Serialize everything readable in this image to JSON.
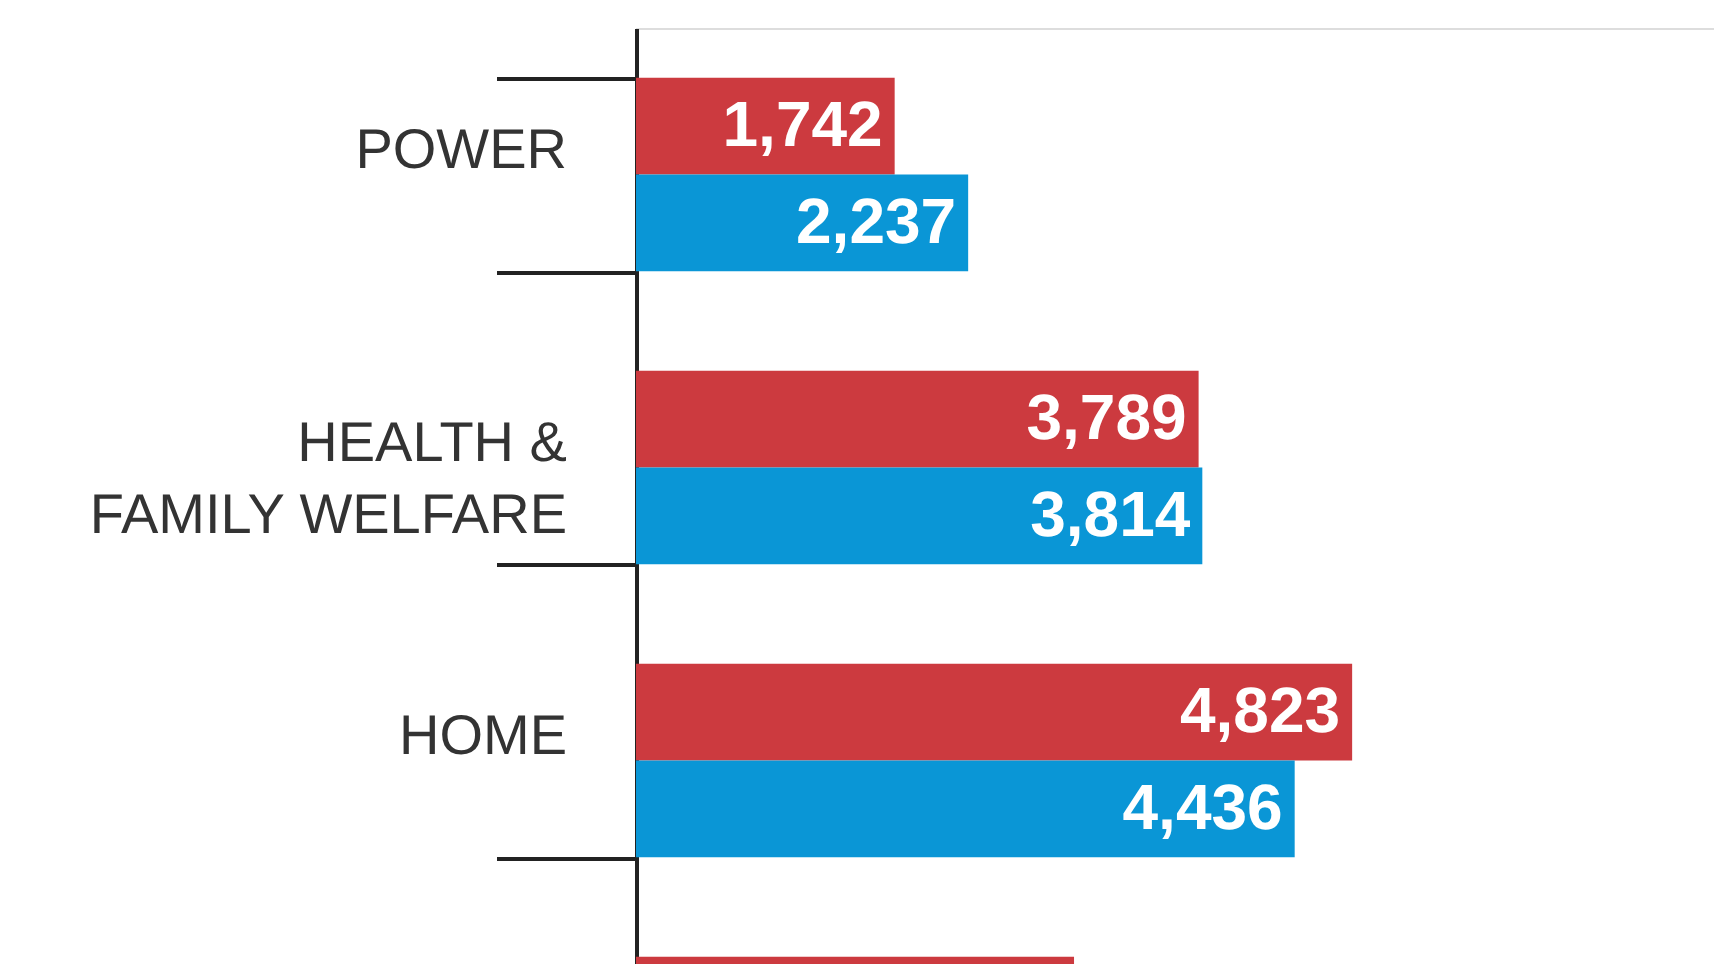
{
  "chart_data": {
    "type": "bar",
    "orientation": "horizontal",
    "categories": [
      "POWER",
      "HEALTH & FAMILY WELFARE",
      "HOME",
      null
    ],
    "series": [
      {
        "color": "#cc3a3f",
        "values": [
          1742,
          3789,
          4823,
          2950
        ],
        "value_labels": [
          "1,742",
          "3,789",
          "4,823",
          null
        ]
      },
      {
        "color": "#0a96d6",
        "values": [
          2237,
          3814,
          4436,
          null
        ],
        "value_labels": [
          "2,237",
          "3,814",
          "4,436",
          null
        ]
      }
    ],
    "xlim": [
      0,
      7260
    ],
    "tick_labels": "y"
  }
}
